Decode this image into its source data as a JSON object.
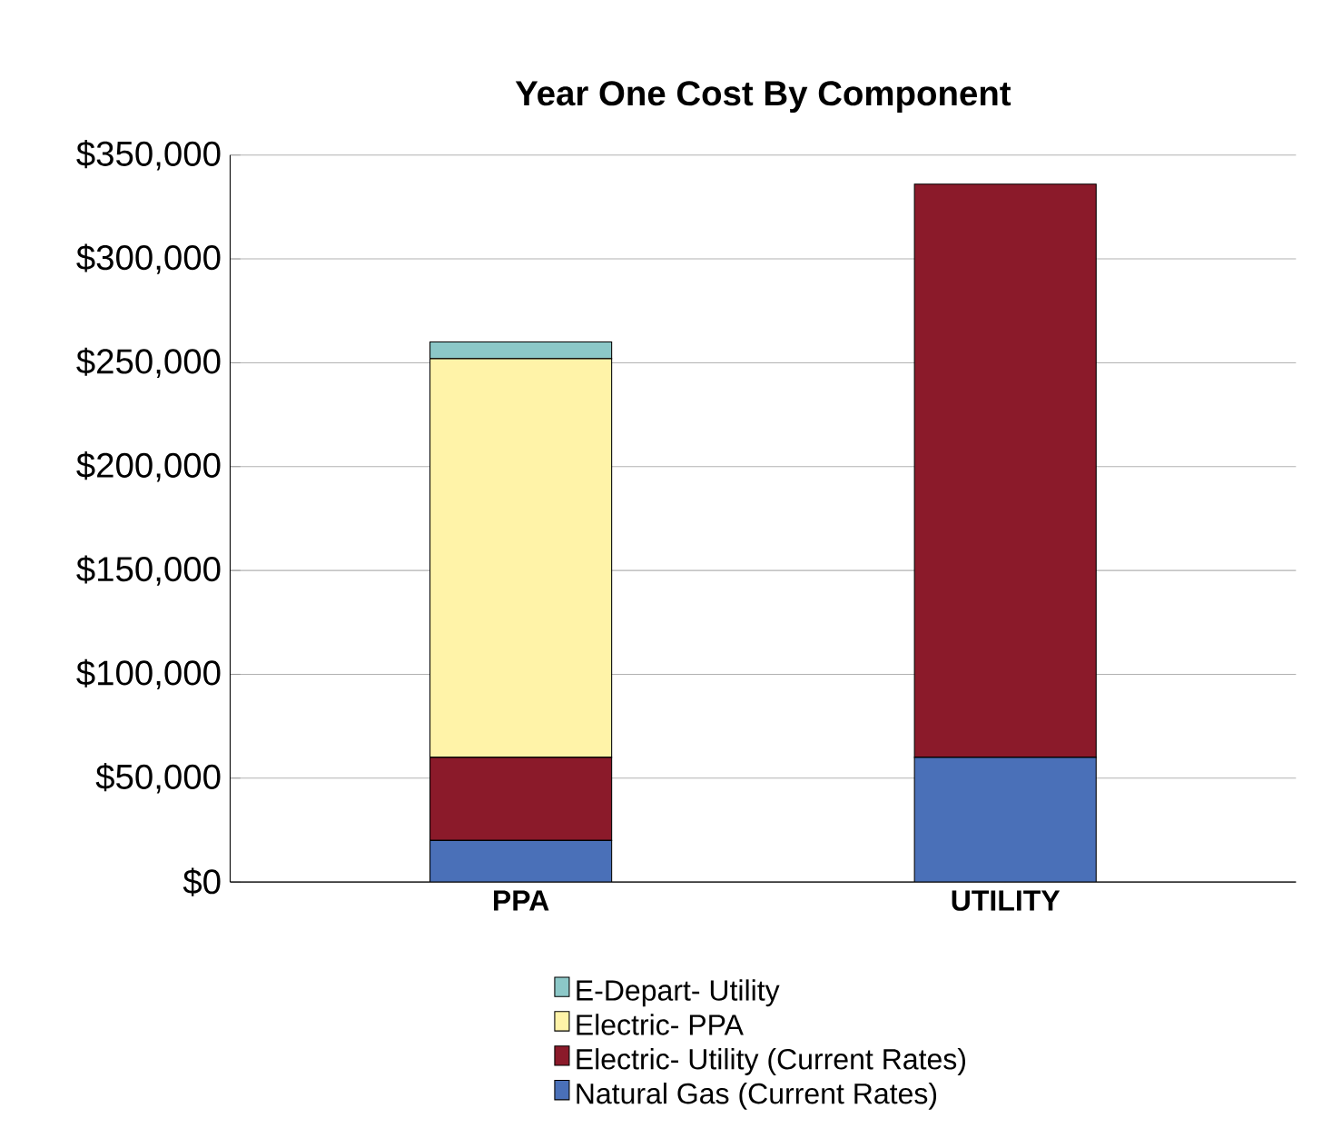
{
  "chart_data": {
    "type": "bar",
    "title": "Year One Cost By Component",
    "stacked": true,
    "categories": [
      "PPA",
      "UTILITY"
    ],
    "series": [
      {
        "name": "Natural Gas (Current Rates)",
        "color": "#4a70b8",
        "values": [
          20000,
          60000
        ]
      },
      {
        "name": "Electric- Utility (Current Rates)",
        "color": "#8b1a2a",
        "values": [
          40000,
          276000
        ]
      },
      {
        "name": "Electric- PPA",
        "color": "#fff3a8",
        "values": [
          192000,
          null
        ]
      },
      {
        "name": "E-Depart- Utility",
        "color": "#8cc8c8",
        "values": [
          8000,
          null
        ]
      }
    ],
    "ylim": [
      0,
      350000
    ],
    "yticks": [
      {
        "value": 0,
        "label": "$0"
      },
      {
        "value": 50000,
        "label": "$50,000"
      },
      {
        "value": 100000,
        "label": "$100,000"
      },
      {
        "value": 150000,
        "label": "$150,000"
      },
      {
        "value": 200000,
        "label": "$200,000"
      },
      {
        "value": 250000,
        "label": "$250,000"
      },
      {
        "value": 300000,
        "label": "$300,000"
      },
      {
        "value": 350000,
        "label": "$350,000"
      }
    ],
    "grid": "y",
    "legend": "bottom"
  }
}
